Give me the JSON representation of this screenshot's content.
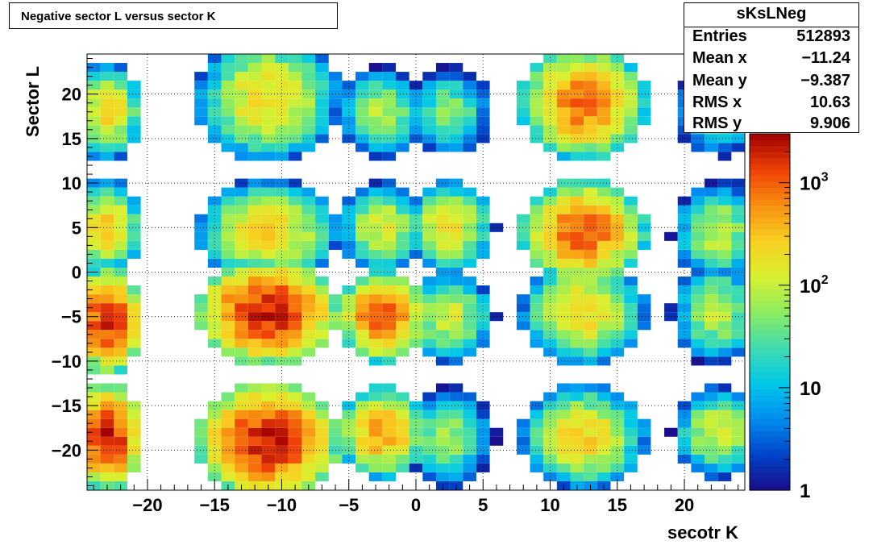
{
  "title": "Negative sector L versus sector K",
  "stats": {
    "name": "sKsLNeg",
    "rows": [
      {
        "label": "Entries",
        "value": "512893"
      },
      {
        "label": "Mean x",
        "value": "−11.24"
      },
      {
        "label": "Mean y",
        "value": "−9.387"
      },
      {
        "label": "RMS x",
        "value": "10.63"
      },
      {
        "label": "RMS y",
        "value": "9.906"
      }
    ]
  },
  "chart_data": {
    "type": "heatmap",
    "title": "Negative sector L versus sector K",
    "xlabel": "secotr K",
    "ylabel": "Sector L",
    "xlim": [
      -24.5,
      24.5
    ],
    "ylim": [
      -24.5,
      24.5
    ],
    "x_ticks": [
      -20,
      -15,
      -10,
      -5,
      0,
      5,
      10,
      15,
      20
    ],
    "x_tick_labels": [
      "−20",
      "−15",
      "−10",
      "−5",
      "0",
      "5",
      "10",
      "15",
      "20"
    ],
    "y_ticks": [
      -20,
      -15,
      -10,
      -5,
      0,
      5,
      10,
      15,
      20
    ],
    "y_tick_labels": [
      "−20",
      "−15",
      "−10",
      "−5",
      "0",
      "5",
      "10",
      "15",
      "20"
    ],
    "grid": true,
    "z_scale": "log",
    "zlim": [
      1,
      3000
    ],
    "z_ticks": [
      1,
      10,
      100,
      1000
    ],
    "z_tick_labels": [
      {
        "base": "1",
        "exp": ""
      },
      {
        "base": "10",
        "exp": ""
      },
      {
        "base": "10",
        "exp": "2"
      },
      {
        "base": "10",
        "exp": "3"
      }
    ],
    "colormap": [
      "#1b0c8a",
      "#0042c8",
      "#008cf0",
      "#00c8e8",
      "#40dcb0",
      "#8cec60",
      "#d8f030",
      "#f8d020",
      "#f89010",
      "#f04008",
      "#a00000"
    ],
    "blobs": [
      {
        "x": [
          -24,
          -22
        ],
        "y": [
          -22,
          -15
        ],
        "peak": 2500
      },
      {
        "x": [
          -14,
          -8
        ],
        "y": [
          -23,
          -15
        ],
        "peak": 2500
      },
      {
        "x": [
          -4,
          -1
        ],
        "y": [
          -21,
          -15
        ],
        "peak": 600
      },
      {
        "x": [
          1,
          4
        ],
        "y": [
          -22,
          -15
        ],
        "peak": 80
      },
      {
        "x": [
          10,
          15
        ],
        "y": [
          -22,
          -15
        ],
        "peak": 300
      },
      {
        "x": [
          21,
          24
        ],
        "y": [
          -21,
          -15
        ],
        "peak": 150
      },
      {
        "x": [
          -24,
          -22
        ],
        "y": [
          -9,
          -2
        ],
        "peak": 2000
      },
      {
        "x": [
          -14,
          -8
        ],
        "y": [
          -8,
          -1
        ],
        "peak": 2500
      },
      {
        "x": [
          -4,
          -1
        ],
        "y": [
          -8,
          -2
        ],
        "peak": 1200
      },
      {
        "x": [
          1,
          4
        ],
        "y": [
          -8,
          -2
        ],
        "peak": 150
      },
      {
        "x": [
          10,
          15
        ],
        "y": [
          -8,
          -1
        ],
        "peak": 300
      },
      {
        "x": [
          21,
          24
        ],
        "y": [
          -8,
          -1
        ],
        "peak": 120
      },
      {
        "x": [
          -24,
          -22
        ],
        "y": [
          2,
          8
        ],
        "peak": 300
      },
      {
        "x": [
          -14,
          -8
        ],
        "y": [
          1,
          8
        ],
        "peak": 300
      },
      {
        "x": [
          -4,
          -1
        ],
        "y": [
          2,
          8
        ],
        "peak": 150
      },
      {
        "x": [
          1,
          4
        ],
        "y": [
          2,
          8
        ],
        "peak": 250
      },
      {
        "x": [
          10,
          15
        ],
        "y": [
          1,
          8
        ],
        "peak": 1200
      },
      {
        "x": [
          21,
          24
        ],
        "y": [
          1,
          8
        ],
        "peak": 120
      },
      {
        "x": [
          -24,
          -22
        ],
        "y": [
          15,
          21
        ],
        "peak": 300
      },
      {
        "x": [
          -14,
          -8
        ],
        "y": [
          15,
          24
        ],
        "peak": 300
      },
      {
        "x": [
          -4,
          -1
        ],
        "y": [
          15,
          21
        ],
        "peak": 100
      },
      {
        "x": [
          1,
          4
        ],
        "y": [
          15,
          21
        ],
        "peak": 60
      },
      {
        "x": [
          10,
          15
        ],
        "y": [
          15,
          23
        ],
        "peak": 1000
      },
      {
        "x": [
          21,
          24
        ],
        "y": [
          15,
          21
        ],
        "peak": 60
      }
    ]
  }
}
